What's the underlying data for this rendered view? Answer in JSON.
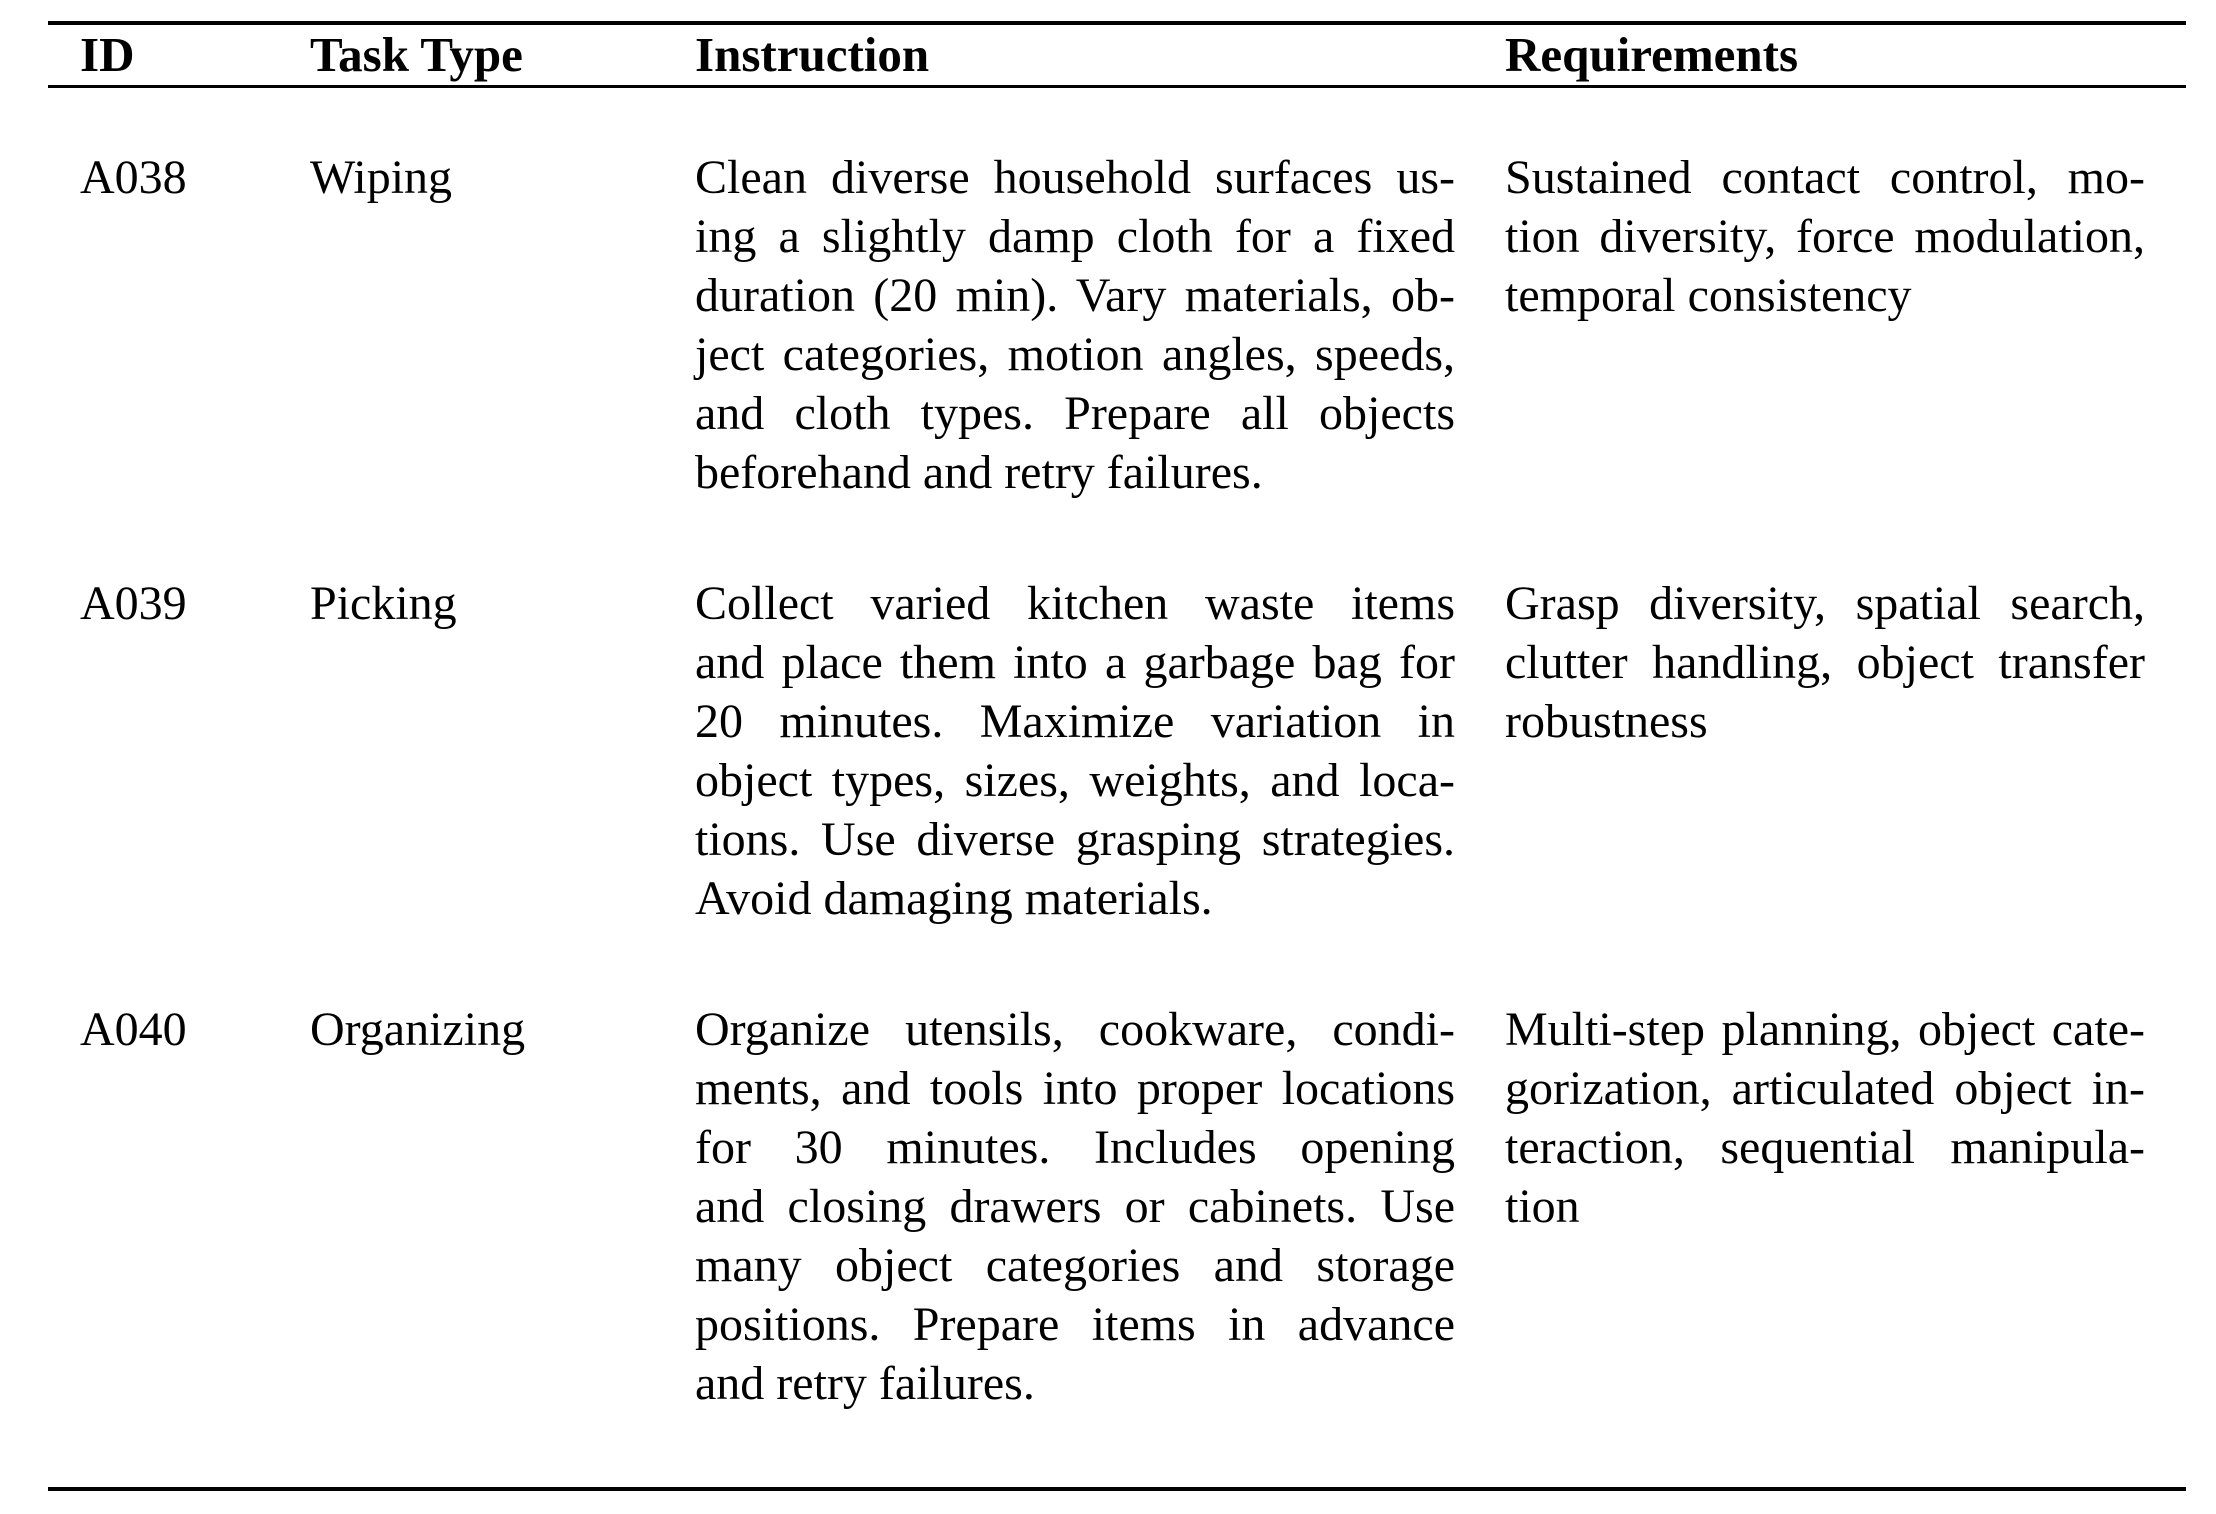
{
  "page": {
    "background_color": "#ffffff",
    "text_color": "#000000"
  },
  "table": {
    "columns": [
      "ID",
      "Task Type",
      "Instruction",
      "Requirements"
    ],
    "rows": [
      {
        "id": "A038",
        "task_type": "Wiping",
        "instruction_lines": [
          "Clean diverse household surfaces us-",
          "ing a slightly damp cloth for a fixed",
          "duration (20 min). Vary materials, ob-",
          "ject categories, motion angles, speeds,",
          "and cloth types. Prepare all objects",
          "beforehand and retry failures."
        ],
        "requirements_lines": [
          "Sustained contact control, mo-",
          "tion diversity, force modulation,",
          "temporal consistency"
        ]
      },
      {
        "id": "A039",
        "task_type": "Picking",
        "instruction_lines": [
          "Collect varied kitchen waste items",
          "and place them into a garbage bag for",
          "20 minutes. Maximize variation in",
          "object types, sizes, weights, and loca-",
          "tions. Use diverse grasping strategies.",
          "Avoid damaging materials."
        ],
        "requirements_lines": [
          "Grasp diversity, spatial search,",
          "clutter handling, object transfer",
          "robustness"
        ]
      },
      {
        "id": "A040",
        "task_type": "Organizing",
        "instruction_lines": [
          "Organize utensils, cookware, condi-",
          "ments, and tools into proper locations",
          "for 30 minutes. Includes opening",
          "and closing drawers or cabinets. Use",
          "many object categories and storage",
          "positions. Prepare items in advance",
          "and retry failures."
        ],
        "requirements_lines": [
          "Multi-step planning, object cate-",
          "gorization, articulated object in-",
          "teraction, sequential manipula-",
          "tion"
        ]
      }
    ]
  }
}
